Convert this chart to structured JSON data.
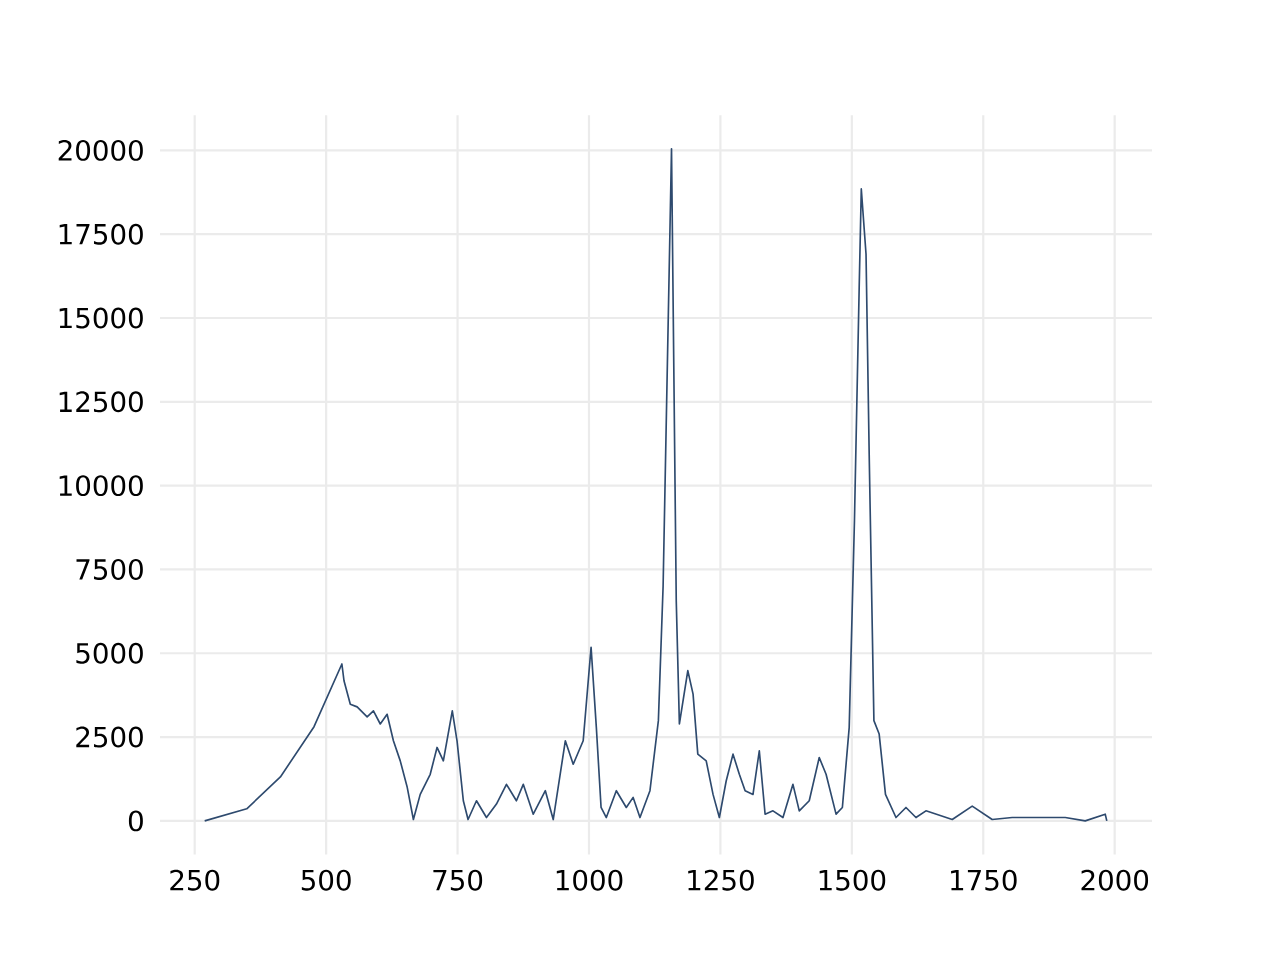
{
  "chart_data": {
    "type": "line",
    "color": "#2e4a6e",
    "grid": true,
    "xlim": [
      184,
      2071
    ],
    "ylim": [
      -1000,
      21050
    ],
    "xticks": [
      250,
      500,
      750,
      1000,
      1250,
      1500,
      1750,
      2000
    ],
    "yticks": [
      0,
      2500,
      5000,
      7500,
      10000,
      12500,
      15000,
      17500,
      20000
    ],
    "x": [
      269,
      349,
      413,
      477,
      530,
      534,
      546,
      559,
      578,
      590,
      603,
      616,
      628,
      641,
      654,
      666,
      679,
      698,
      711,
      723,
      740,
      749,
      761,
      770,
      786,
      805,
      824,
      843,
      862,
      875,
      894,
      917,
      932,
      955,
      970,
      989,
      1004,
      1014,
      1023,
      1033,
      1052,
      1071,
      1084,
      1097,
      1116,
      1132,
      1141,
      1157,
      1166,
      1172,
      1188,
      1198,
      1207,
      1223,
      1236,
      1248,
      1261,
      1274,
      1286,
      1297,
      1312,
      1324,
      1335,
      1350,
      1369,
      1388,
      1400,
      1419,
      1438,
      1451,
      1470,
      1482,
      1495,
      1505,
      1514,
      1518,
      1527,
      1533,
      1542,
      1552,
      1564,
      1584,
      1603,
      1622,
      1641,
      1691,
      1729,
      1767,
      1805,
      1856,
      1906,
      1944,
      1982,
      1985
    ],
    "values": [
      0,
      360,
      1310,
      2810,
      4680,
      4180,
      3480,
      3400,
      3100,
      3280,
      2890,
      3180,
      2390,
      1790,
      1020,
      40,
      790,
      1390,
      2190,
      1790,
      3280,
      2390,
      600,
      40,
      600,
      100,
      500,
      1090,
      600,
      1090,
      200,
      900,
      40,
      2390,
      1690,
      2390,
      5180,
      2790,
      400,
      100,
      900,
      400,
      700,
      100,
      900,
      2990,
      7000,
      20050,
      6570,
      2890,
      4480,
      3780,
      1990,
      1790,
      790,
      100,
      1190,
      1990,
      1390,
      900,
      790,
      2090,
      200,
      300,
      100,
      1090,
      300,
      600,
      1890,
      1390,
      200,
      400,
      2790,
      8960,
      15920,
      18850,
      16910,
      10940,
      2990,
      2590,
      790,
      100,
      400,
      100,
      300,
      40,
      440,
      40,
      100,
      100,
      100,
      0,
      200,
      0
    ]
  }
}
